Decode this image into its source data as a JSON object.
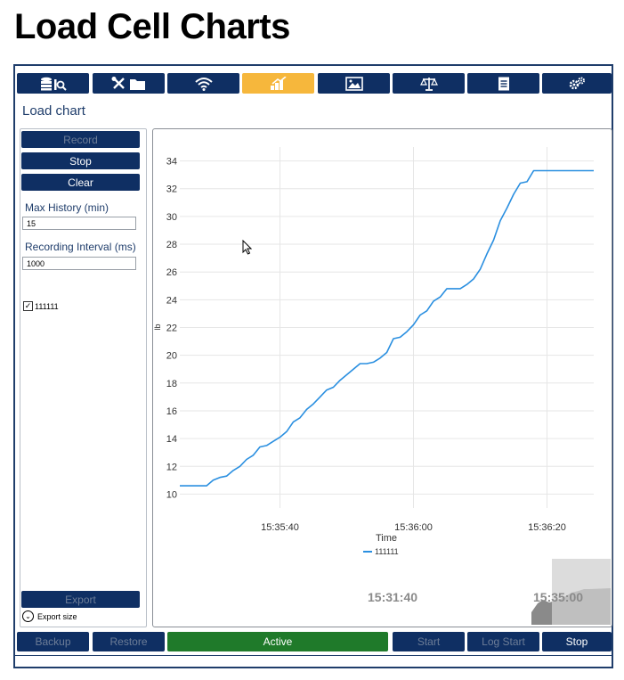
{
  "page_title": "Load Cell Charts",
  "colors": {
    "nav": "#0f2f63",
    "active_tab": "#f6b73c",
    "status_green": "#1f7a2a",
    "line": "#2a8fe0"
  },
  "toolbar": {
    "tabs": [
      {
        "icon": "database-search-icon"
      },
      {
        "icon": "tools-folder-icon"
      },
      {
        "icon": "wifi-icon"
      },
      {
        "icon": "chart-up-icon",
        "active": true
      },
      {
        "icon": "image-icon"
      },
      {
        "icon": "scale-icon"
      },
      {
        "icon": "document-icon"
      },
      {
        "icon": "gears-icon"
      }
    ]
  },
  "section_title": "Load chart",
  "left_panel": {
    "record_label": "Record",
    "stop_label": "Stop",
    "clear_label": "Clear",
    "max_history_label": "Max History (min)",
    "max_history_value": "15",
    "interval_label": "Recording Interval (ms)",
    "interval_value": "1000",
    "series_checkbox_label": "111111",
    "series_checked": true,
    "export_label": "Export",
    "export_size_label": "Export size"
  },
  "chart_data": {
    "type": "line",
    "xlabel": "Time",
    "ylabel": "lb",
    "ylim": [
      9,
      35
    ],
    "yticks": [
      10,
      12,
      14,
      16,
      18,
      20,
      22,
      24,
      26,
      28,
      30,
      32,
      34
    ],
    "xtick_labels": [
      "15:35:40",
      "15:36:00",
      "15:36:20"
    ],
    "xtick_seconds": [
      40,
      60,
      80
    ],
    "xlim_seconds": [
      25,
      87
    ],
    "grid": true,
    "legend": "bottom-center",
    "series": [
      {
        "name": "111111",
        "x_seconds": [
          25,
          29,
          30,
          31,
          32,
          33,
          34,
          35,
          36,
          37,
          38,
          39,
          40,
          41,
          42,
          43,
          44,
          45,
          46,
          47,
          48,
          49,
          50,
          51,
          52,
          53,
          54,
          55,
          56,
          57,
          58,
          59,
          60,
          61,
          62,
          63,
          64,
          65,
          66,
          67,
          68,
          69,
          70,
          71,
          72,
          73,
          74,
          75,
          76,
          77,
          78,
          79,
          80,
          81,
          87
        ],
        "y": [
          10.6,
          10.6,
          11.0,
          11.2,
          11.3,
          11.7,
          12.0,
          12.5,
          12.8,
          13.4,
          13.5,
          13.8,
          14.1,
          14.5,
          15.2,
          15.5,
          16.1,
          16.5,
          17.0,
          17.5,
          17.7,
          18.2,
          18.6,
          19.0,
          19.4,
          19.4,
          19.5,
          19.8,
          20.2,
          21.2,
          21.3,
          21.7,
          22.2,
          22.9,
          23.2,
          23.9,
          24.2,
          24.8,
          24.8,
          24.8,
          25.1,
          25.5,
          26.2,
          27.3,
          28.3,
          29.7,
          30.6,
          31.6,
          32.4,
          32.5,
          33.3,
          33.3,
          33.3,
          33.3,
          33.3
        ]
      }
    ],
    "navigator": {
      "tick_labels": [
        "15:31:40",
        "15:35:00"
      ]
    }
  },
  "bottom_bar": {
    "backup_label": "Backup",
    "restore_label": "Restore",
    "status_label": "Active",
    "start_label": "Start",
    "log_start_label": "Log Start",
    "stop_label": "Stop"
  }
}
